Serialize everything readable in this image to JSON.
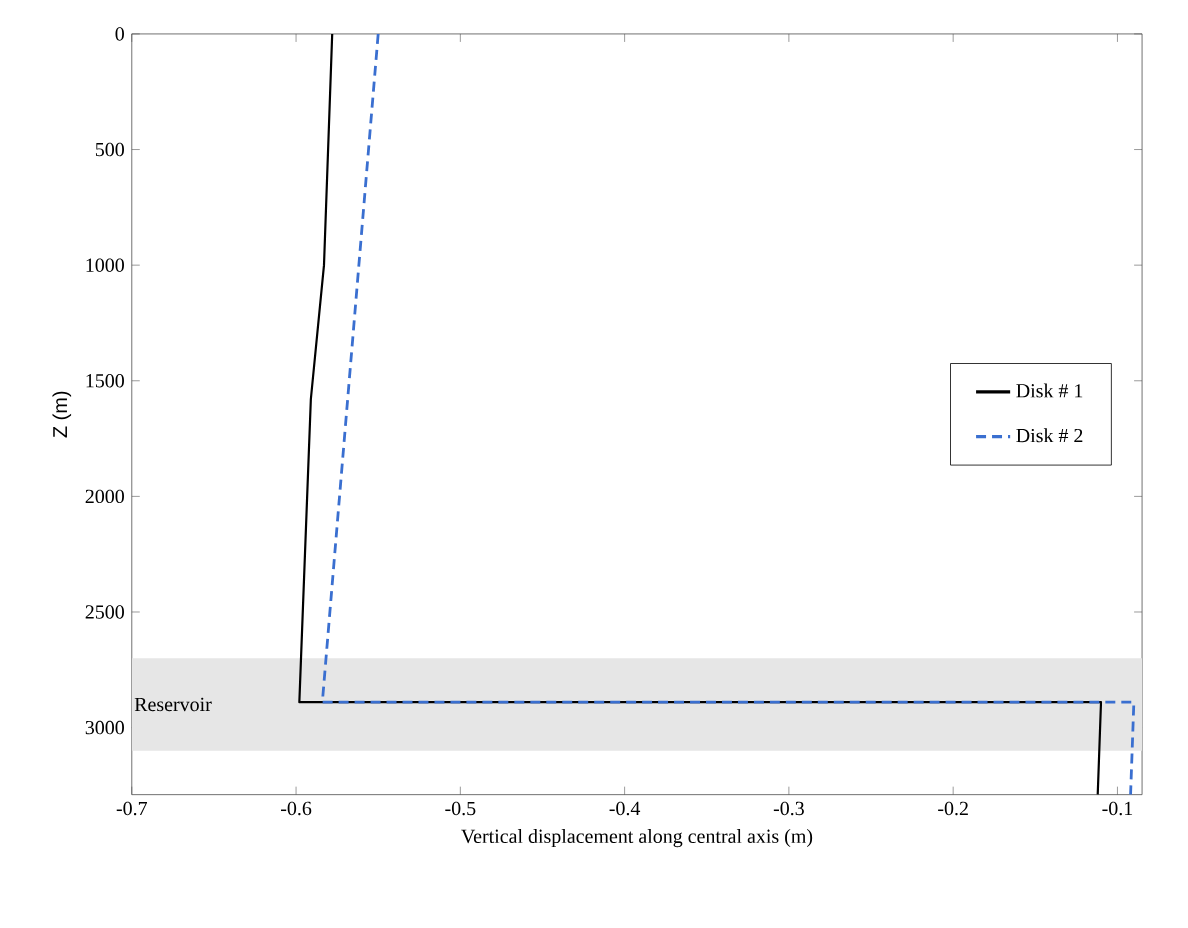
{
  "chart_data": {
    "type": "line",
    "xlabel": "Vertical displacement along central axis (m)",
    "ylabel": "Z (m)",
    "xlim": [
      -0.7,
      -0.085
    ],
    "xticks": [
      -0.7,
      -0.6,
      -0.5,
      -0.4,
      -0.3,
      -0.2,
      -0.1
    ],
    "ylim": [
      3290,
      0
    ],
    "yticks": [
      0,
      500,
      1000,
      1500,
      2000,
      2500,
      3000
    ],
    "series": [
      {
        "name": "Disk # 1",
        "color": "#000000",
        "line_style": "solid",
        "x": [
          -0.578,
          -0.583,
          -0.591,
          -0.598,
          -0.11,
          -0.112
        ],
        "values": [
          0,
          1000,
          1580,
          2890,
          2890,
          3290
        ]
      },
      {
        "name": "Disk # 2",
        "color": "#3a6fd0",
        "line_style": "dashed",
        "x": [
          -0.55,
          -0.584,
          -0.09,
          -0.092
        ],
        "values": [
          0,
          2890,
          2890,
          3290
        ]
      }
    ],
    "bands": [
      {
        "axis": "y",
        "from": 2700,
        "to": 3100,
        "label": "Reservoir",
        "color": "#e6e6e6"
      }
    ],
    "legend": "right",
    "grid": false,
    "marker": "none"
  }
}
